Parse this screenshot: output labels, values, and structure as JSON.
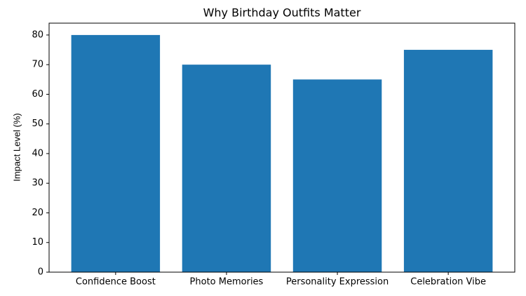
{
  "chart_data": {
    "type": "bar",
    "title": "Why Birthday Outfits Matter",
    "y_label": "Impact Level (%)",
    "categories": [
      "Confidence Boost",
      "Photo Memories",
      "Personality Expression",
      "Celebration Vibe"
    ],
    "values": [
      80,
      70,
      65,
      75
    ],
    "color": "#1f77b4",
    "ylim": [
      0,
      84
    ],
    "yticks": [
      0,
      10,
      20,
      30,
      40,
      50,
      60,
      70,
      80
    ],
    "grid": false
  }
}
